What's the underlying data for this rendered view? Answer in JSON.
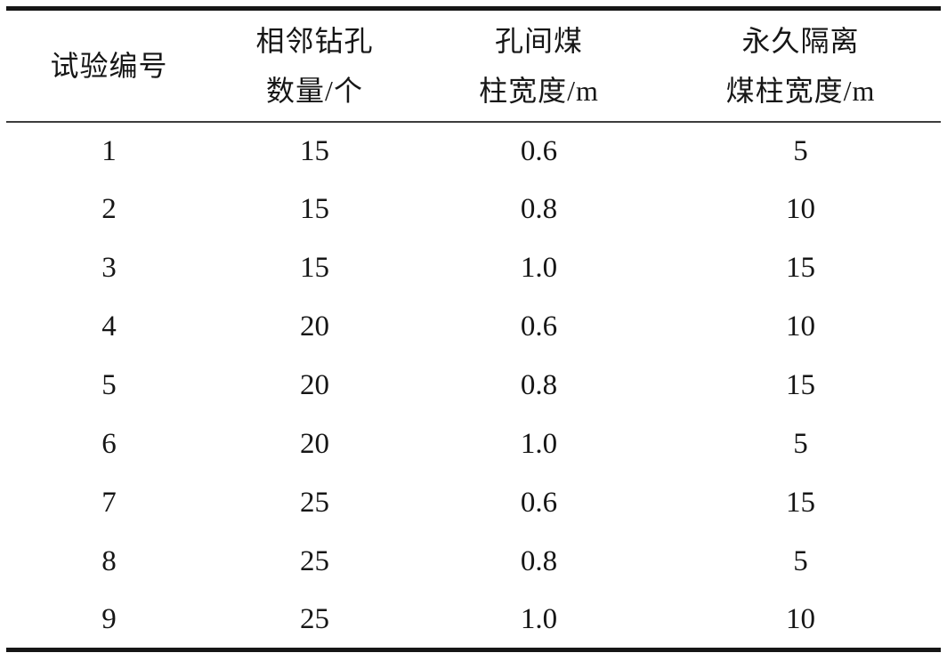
{
  "table": {
    "columns": [
      {
        "lines": [
          "试验编号"
        ]
      },
      {
        "lines": [
          "相邻钻孔",
          "数量/个"
        ]
      },
      {
        "lines": [
          "孔间煤",
          "柱宽度/m"
        ]
      },
      {
        "lines": [
          "永久隔离",
          "煤柱宽度/m"
        ]
      }
    ],
    "rows": [
      [
        "1",
        "15",
        "0.6",
        "5"
      ],
      [
        "2",
        "15",
        "0.8",
        "10"
      ],
      [
        "3",
        "15",
        "1.0",
        "15"
      ],
      [
        "4",
        "20",
        "0.6",
        "10"
      ],
      [
        "5",
        "20",
        "0.8",
        "15"
      ],
      [
        "6",
        "20",
        "1.0",
        "5"
      ],
      [
        "7",
        "25",
        "0.6",
        "15"
      ],
      [
        "8",
        "25",
        "0.8",
        "5"
      ],
      [
        "9",
        "25",
        "1.0",
        "10"
      ]
    ],
    "colors": {
      "text": "#161616",
      "rule_heavy": "#161616",
      "rule_light": "#3c3c3c",
      "background": "#ffffff"
    }
  },
  "chart_data": {
    "type": "table",
    "columns": [
      "试验编号",
      "相邻钻孔数量/个",
      "孔间煤柱宽度/m",
      "永久隔离煤柱宽度/m"
    ],
    "rows": [
      [
        1,
        15,
        0.6,
        5
      ],
      [
        2,
        15,
        0.8,
        10
      ],
      [
        3,
        15,
        1.0,
        15
      ],
      [
        4,
        20,
        0.6,
        10
      ],
      [
        5,
        20,
        0.8,
        15
      ],
      [
        6,
        20,
        1.0,
        5
      ],
      [
        7,
        25,
        0.6,
        15
      ],
      [
        8,
        25,
        0.8,
        5
      ],
      [
        9,
        25,
        1.0,
        10
      ]
    ]
  }
}
